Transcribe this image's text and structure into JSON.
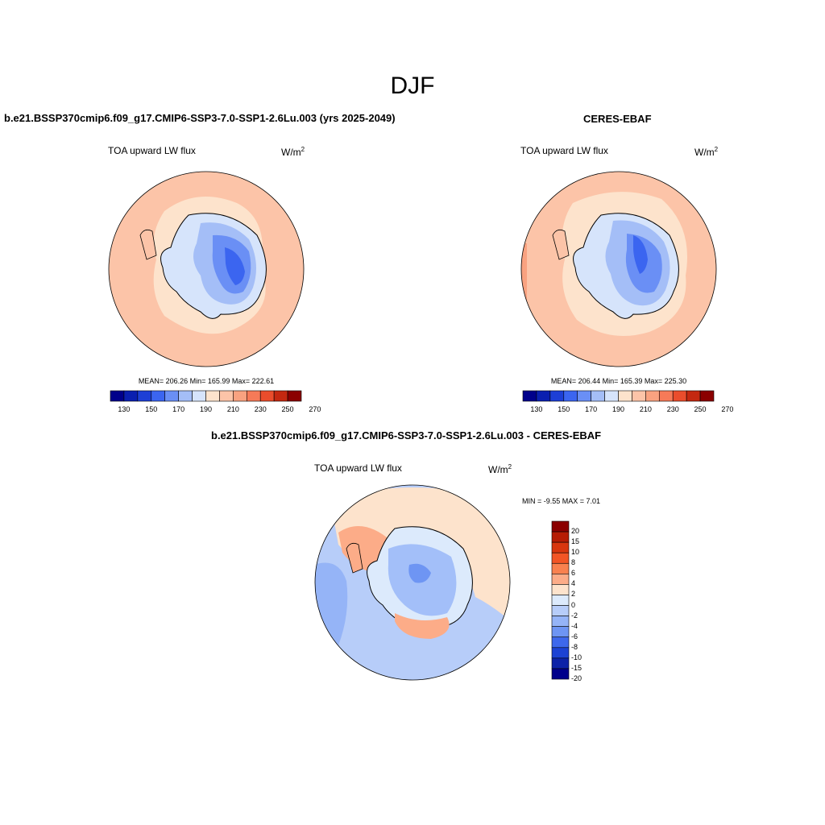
{
  "figure": {
    "title": "DJF"
  },
  "panels": [
    {
      "id": "model",
      "title": "b.e21.BSSP370cmip6.f09_g17.CMIP6-SSP3-7.0-SSP1-2.6Lu.003 (yrs 2025-2049)",
      "variable": "TOA upward LW flux",
      "units_base": "W/m",
      "units_exp": "2",
      "stats": "MEAN= 206.26  Min= 165.99  Max= 222.61",
      "mean": 206.26,
      "min": 165.99,
      "max": 222.61,
      "colorbar_ticks": [
        "130",
        "150",
        "170",
        "190",
        "210",
        "230",
        "250",
        "270"
      ]
    },
    {
      "id": "obs",
      "title": "CERES-EBAF",
      "variable": "TOA upward LW flux",
      "units_base": "W/m",
      "units_exp": "2",
      "stats": "MEAN= 206.44  Min= 165.39  Max= 225.30",
      "mean": 206.44,
      "min": 165.39,
      "max": 225.3,
      "colorbar_ticks": [
        "130",
        "150",
        "170",
        "190",
        "210",
        "230",
        "250",
        "270"
      ]
    },
    {
      "id": "diff",
      "title": "b.e21.BSSP370cmip6.f09_g17.CMIP6-SSP3-7.0-SSP1-2.6Lu.003 - CERES-EBAF",
      "variable": "TOA upward LW flux",
      "units_base": "W/m",
      "units_exp": "2",
      "stats": "MIN =  -9.55 MAX =   7.01",
      "min": -9.55,
      "max": 7.01,
      "colorbar_ticks": [
        "20",
        "15",
        "10",
        "8",
        "6",
        "4",
        "2",
        "0",
        "-2",
        "-4",
        "-6",
        "-8",
        "-10",
        "-15",
        "-20"
      ]
    }
  ],
  "colors": {
    "abs_scale": [
      "#00008b",
      "#0a1fb0",
      "#1d3fd6",
      "#3b65f0",
      "#6a8ff5",
      "#a4bef7",
      "#d6e4fb",
      "#fde3cc",
      "#fcc4a8",
      "#f9a280",
      "#f67a58",
      "#ea4d2c",
      "#c42810",
      "#8b0000"
    ],
    "diff_scale": [
      "#8b0000",
      "#b61c04",
      "#d8360e",
      "#f25525",
      "#f9814f",
      "#fcac88",
      "#fde3cc",
      "#dceafc",
      "#b7cdf9",
      "#95b4f7",
      "#6e95f3",
      "#3e68ec",
      "#1c42d4",
      "#0c22a8",
      "#00008b"
    ],
    "land_outline": "#000000"
  }
}
